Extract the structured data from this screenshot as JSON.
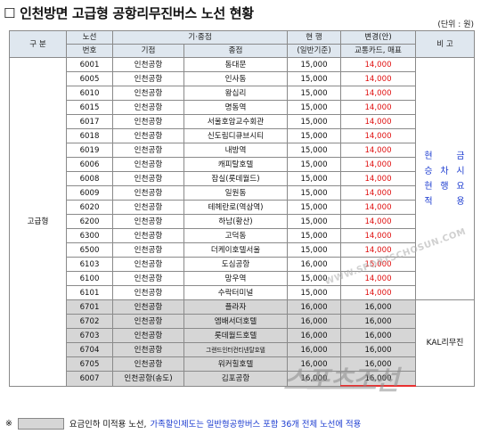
{
  "title": "☐  인천방면 고급형 공항리무진버스 노선 현황",
  "unit": "(단위 : 원)",
  "headers": {
    "category": "구 분",
    "route_top": "노선",
    "route_bottom": "번호",
    "stops": "기·종점",
    "start": "기점",
    "end": "종점",
    "current_top": "현 행",
    "current_bottom": "(일반기준)",
    "new_top": "변경(안)",
    "new_bottom": "교통카드, 매표",
    "remark": "비 고"
  },
  "grade": "고급형",
  "remark_chars": [
    "현",
    "",
    "금",
    "승",
    "차",
    "시",
    "현",
    "행",
    "요",
    "적",
    "",
    "용"
  ],
  "remark_kal": "KAL리무진",
  "rows": [
    {
      "no": "6001",
      "start": "인천공항",
      "end": "동대문",
      "current": "15,000",
      "new": "14,000",
      "gray": false
    },
    {
      "no": "6005",
      "start": "인천공항",
      "end": "인사동",
      "current": "15,000",
      "new": "14,000",
      "gray": false
    },
    {
      "no": "6010",
      "start": "인천공항",
      "end": "왕십리",
      "current": "15,000",
      "new": "14,000",
      "gray": false
    },
    {
      "no": "6015",
      "start": "인천공항",
      "end": "명동역",
      "current": "15,000",
      "new": "14,000",
      "gray": false
    },
    {
      "no": "6017",
      "start": "인천공항",
      "end": "서울호암교수회관",
      "current": "15,000",
      "new": "14,000",
      "gray": false
    },
    {
      "no": "6018",
      "start": "인천공항",
      "end": "신도림디큐브시티",
      "current": "15,000",
      "new": "14,000",
      "gray": false
    },
    {
      "no": "6019",
      "start": "인천공항",
      "end": "내방역",
      "current": "15,000",
      "new": "14,000",
      "gray": false
    },
    {
      "no": "6006",
      "start": "인천공항",
      "end": "캐피탈호텔",
      "current": "15,000",
      "new": "14,000",
      "gray": false
    },
    {
      "no": "6008",
      "start": "인천공항",
      "end": "잠실(롯데월드)",
      "current": "15,000",
      "new": "14,000",
      "gray": false
    },
    {
      "no": "6009",
      "start": "인천공항",
      "end": "일원동",
      "current": "15,000",
      "new": "14,000",
      "gray": false
    },
    {
      "no": "6020",
      "start": "인천공항",
      "end": "테헤란로(역삼역)",
      "current": "15,000",
      "new": "14,000",
      "gray": false
    },
    {
      "no": "6200",
      "start": "인천공항",
      "end": "하남(황산)",
      "current": "15,000",
      "new": "14,000",
      "gray": false
    },
    {
      "no": "6300",
      "start": "인천공항",
      "end": "고덕동",
      "current": "15,000",
      "new": "14,000",
      "gray": false
    },
    {
      "no": "6500",
      "start": "인천공항",
      "end": "더케이호텔서울",
      "current": "15,000",
      "new": "14,000",
      "gray": false
    },
    {
      "no": "6103",
      "start": "인천공항",
      "end": "도심공항",
      "current": "16,000",
      "new": "15,000",
      "gray": false
    },
    {
      "no": "6100",
      "start": "인천공항",
      "end": "망우역",
      "current": "15,000",
      "new": "14,000",
      "gray": false
    },
    {
      "no": "6101",
      "start": "인천공항",
      "end": "수락터미널",
      "current": "15,000",
      "new": "14,000",
      "gray": false
    },
    {
      "no": "6701",
      "start": "인천공항",
      "end": "플라자",
      "current": "16,000",
      "new": "16,000",
      "gray": true
    },
    {
      "no": "6702",
      "start": "인천공항",
      "end": "엠배서더호텔",
      "current": "16,000",
      "new": "16,000",
      "gray": true
    },
    {
      "no": "6703",
      "start": "인천공항",
      "end": "롯데월드호텔",
      "current": "16,000",
      "new": "16,000",
      "gray": true
    },
    {
      "no": "6704",
      "start": "인천공항",
      "end": "그랜드인터컨티넨탈호텔",
      "current": "16,000",
      "new": "16,000",
      "gray": true
    },
    {
      "no": "6705",
      "start": "인천공항",
      "end": "워커힐호텔",
      "current": "16,000",
      "new": "16,000",
      "gray": true
    },
    {
      "no": "6007",
      "start": "인천공항(송도)",
      "end": "김포공항",
      "current": "16,000",
      "new": "16,000",
      "gray": true
    }
  ],
  "footnote": {
    "mark": "※",
    "text1": "요금인하 미적용 노선,",
    "text2": "가족할인제도는 일반형공항버스 포함 36개 전체 노선에 적용"
  },
  "watermark": {
    "url": "WWW.SPORTSCHOSUN.COM",
    "logo": "스포츠조선"
  },
  "colors": {
    "header_bg": "#dfe7ef",
    "highlight_red": "#e01010",
    "remark_blue": "#1c3cd0",
    "gray_row": "#d6d6d6"
  }
}
